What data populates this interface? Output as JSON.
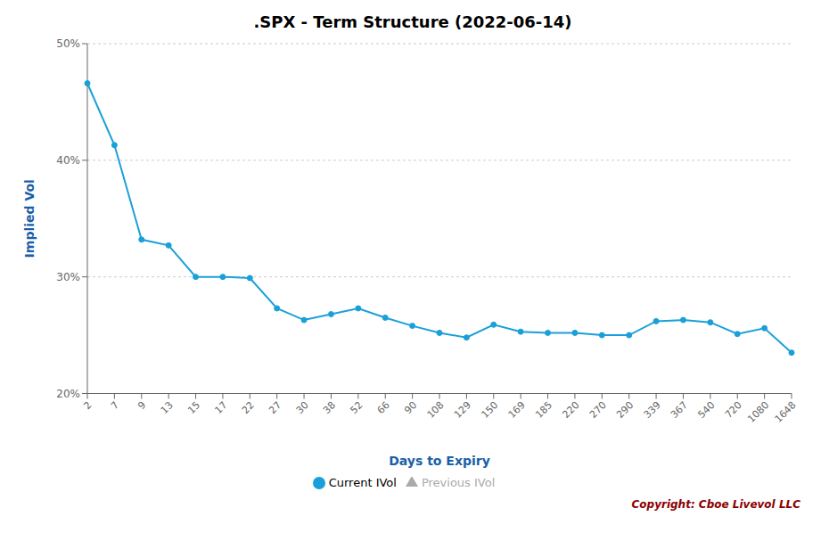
{
  "chart_data": {
    "type": "line",
    "title": ".SPX - Term Structure (2022-06-14)",
    "x_label": "Days to Expiry",
    "y_label": "Implied Vol",
    "categories": [
      "2",
      "7",
      "9",
      "13",
      "15",
      "17",
      "22",
      "27",
      "30",
      "38",
      "52",
      "66",
      "90",
      "108",
      "129",
      "150",
      "169",
      "185",
      "220",
      "270",
      "290",
      "339",
      "367",
      "540",
      "720",
      "1080",
      "1648"
    ],
    "series": [
      {
        "name": "Current IVol",
        "color": "#1aa0d8",
        "marker": "circle",
        "line_style": "solid",
        "values": [
          0.466,
          0.413,
          0.332,
          0.327,
          0.3,
          0.3,
          0.299,
          0.273,
          0.263,
          0.268,
          0.273,
          0.265,
          0.258,
          0.252,
          0.248,
          0.259,
          0.253,
          0.252,
          0.252,
          0.25,
          0.25,
          0.262,
          0.263,
          0.261,
          0.251,
          0.256,
          0.235
        ]
      },
      {
        "name": "Previous IVol",
        "color": "#aaaaaa",
        "marker": "triangle",
        "line_style": "solid",
        "values": [
          null,
          null,
          null,
          null,
          null,
          null,
          null,
          null,
          null,
          null,
          null,
          null,
          null,
          null,
          null,
          null,
          null,
          null,
          null,
          null,
          null,
          null,
          null,
          null,
          null,
          null,
          null
        ]
      }
    ],
    "ylim": [
      0.2,
      0.5
    ],
    "yticks": [
      {
        "value": 0.2,
        "label": "20%"
      },
      {
        "value": 0.3,
        "label": "30%"
      },
      {
        "value": 0.4,
        "label": "40%"
      },
      {
        "value": 0.5,
        "label": "50%"
      }
    ],
    "grid": "y",
    "legend": "bottom",
    "annotations": [
      {
        "text": "Copyright: Cboe Livevol LLC",
        "color": "#8b0000"
      }
    ]
  }
}
